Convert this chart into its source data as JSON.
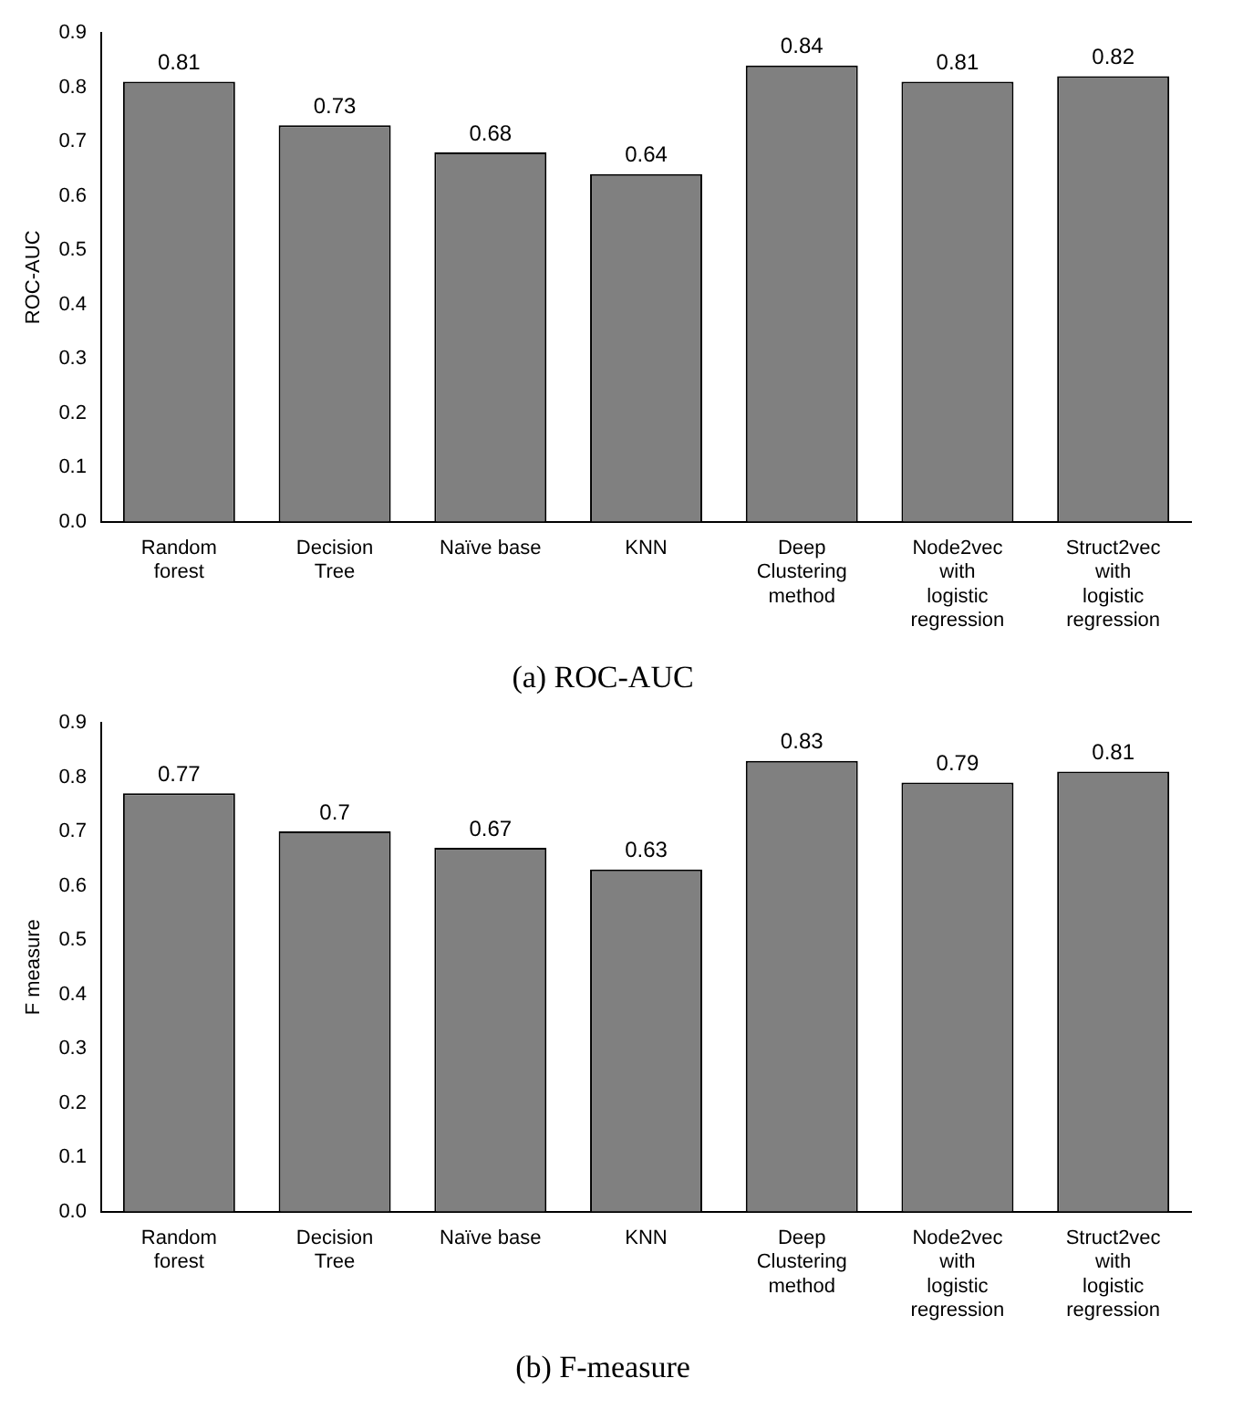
{
  "chart_data": [
    {
      "type": "bar",
      "title": "(a) ROC-AUC",
      "ylabel": "ROC-AUC",
      "categories": [
        "Random forest",
        "Decision Tree",
        "Naïve base",
        "KNN",
        "Deep Clustering method",
        "Node2vec with logistic regression",
        "Struct2vec with logistic regression"
      ],
      "values": [
        0.81,
        0.73,
        0.68,
        0.64,
        0.84,
        0.81,
        0.82
      ],
      "color": "#808080",
      "ylim": [
        0,
        0.9
      ],
      "yticks": [
        {
          "value": 0,
          "label": "0.0"
        },
        {
          "value": 0.1,
          "label": "0.1"
        },
        {
          "value": 0.2,
          "label": "0.2"
        },
        {
          "value": 0.3,
          "label": "0.3"
        },
        {
          "value": 0.4,
          "label": "0.4"
        },
        {
          "value": 0.5,
          "label": "0.5"
        },
        {
          "value": 0.6,
          "label": "0.6"
        },
        {
          "value": 0.7,
          "label": "0.7"
        },
        {
          "value": 0.8,
          "label": "0.8"
        },
        {
          "value": 0.9,
          "label": "0.9"
        }
      ],
      "grid": false,
      "legend": false,
      "data_labels": true
    },
    {
      "type": "bar",
      "title": "(b) F-measure",
      "ylabel": "F measure",
      "categories": [
        "Random forest",
        "Decision Tree",
        "Naïve base",
        "KNN",
        "Deep Clustering method",
        "Node2vec with logistic regression",
        "Struct2vec with logistic regression"
      ],
      "values": [
        0.77,
        0.7,
        0.67,
        0.63,
        0.83,
        0.79,
        0.81
      ],
      "color": "#808080",
      "ylim": [
        0,
        0.9
      ],
      "yticks": [
        {
          "value": 0,
          "label": "0.0"
        },
        {
          "value": 0.1,
          "label": "0.1"
        },
        {
          "value": 0.2,
          "label": "0.2"
        },
        {
          "value": 0.3,
          "label": "0.3"
        },
        {
          "value": 0.4,
          "label": "0.4"
        },
        {
          "value": 0.5,
          "label": "0.5"
        },
        {
          "value": 0.6,
          "label": "0.6"
        },
        {
          "value": 0.7,
          "label": "0.7"
        },
        {
          "value": 0.8,
          "label": "0.8"
        },
        {
          "value": 0.9,
          "label": "0.9"
        }
      ],
      "grid": false,
      "legend": false,
      "data_labels": true
    }
  ]
}
